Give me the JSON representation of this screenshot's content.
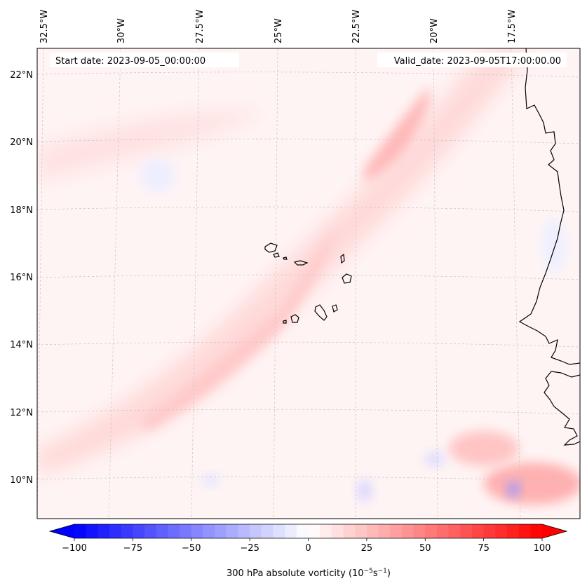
{
  "map": {
    "start_date_label": "Start date: 2023-09-05_00:00:00",
    "valid_date_label": "Valid_date: 2023-09-05T17:00:00.00",
    "lon_labels": [
      "32.5°W",
      "30°W",
      "27.5°W",
      "25°W",
      "22.5°W",
      "20°W",
      "17.5°W"
    ],
    "lat_labels": [
      "22°N",
      "20°N",
      "18°N",
      "16°N",
      "14°N",
      "12°N",
      "10°N"
    ],
    "coastline_color": "#000000",
    "gridline_color": "#b0b0b0"
  },
  "colorbar": {
    "label_prefix": "300 hPa absolute vorticity (10",
    "label_exp1": "−5",
    "label_mid": "s",
    "label_exp2": "−1",
    "label_suffix": ")",
    "ticks": [
      "−100",
      "−75",
      "−50",
      "−25",
      "0",
      "25",
      "50",
      "75",
      "100"
    ],
    "tick_values": [
      -100,
      -75,
      -50,
      -25,
      0,
      25,
      50,
      75,
      100
    ],
    "range": [
      -100,
      100
    ],
    "cmap": "bwr",
    "low_color": "#0000ff",
    "mid_color": "#ffffff",
    "high_color": "#ff0000"
  },
  "chart_data": {
    "type": "heatmap",
    "variable": "300 hPa absolute vorticity",
    "units": "10^-5 s^-1",
    "lon_ticks": [
      -32.5,
      -30,
      -27.5,
      -25,
      -22.5,
      -20,
      -17.5
    ],
    "lat_ticks": [
      22,
      20,
      18,
      16,
      14,
      12,
      10
    ],
    "value_range": [
      -100,
      100
    ],
    "extend": "both"
  }
}
